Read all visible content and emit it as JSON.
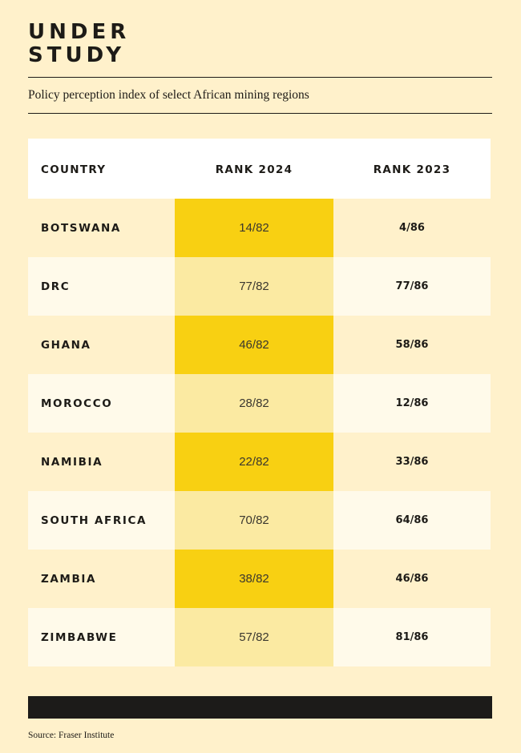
{
  "title": {
    "line1": "UNDER",
    "line2": "STUDY"
  },
  "subtitle": "Policy perception index of select African mining regions",
  "table": {
    "headers": [
      "COUNTRY",
      "RANK 2024",
      "RANK 2023"
    ],
    "rows": [
      {
        "country": "BOTSWANA",
        "rank_2024": "14/82",
        "rank_2023": "4/86"
      },
      {
        "country": "DRC",
        "rank_2024": "77/82",
        "rank_2023": "77/86"
      },
      {
        "country": "GHANA",
        "rank_2024": "46/82",
        "rank_2023": "58/86"
      },
      {
        "country": "MOROCCO",
        "rank_2024": "28/82",
        "rank_2023": "12/86"
      },
      {
        "country": "NAMIBIA",
        "rank_2024": "22/82",
        "rank_2023": "33/86"
      },
      {
        "country": "SOUTH AFRICA",
        "rank_2024": "70/82",
        "rank_2023": "64/86"
      },
      {
        "country": "ZAMBIA",
        "rank_2024": "38/82",
        "rank_2023": "46/86"
      },
      {
        "country": "ZIMBABWE",
        "rank_2024": "57/82",
        "rank_2023": "81/86"
      }
    ]
  },
  "source": "Source: Fraser Institute",
  "colors": {
    "background": "#fff1cb",
    "row_light": "#fffaea",
    "highlight_strong": "#f8d012",
    "highlight_soft": "#fbeaa2",
    "header_bg": "#ffffff",
    "footer_bar": "#1c1b19"
  }
}
